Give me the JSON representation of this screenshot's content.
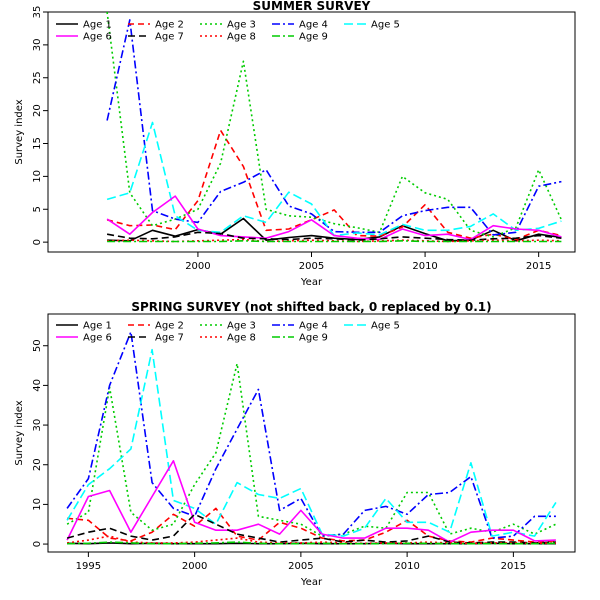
{
  "chart_data": [
    {
      "type": "line",
      "title": "SUMMER SURVEY",
      "xlabel": "Year",
      "ylabel": "Survey index",
      "xlim": [
        1993.4,
        2016.6
      ],
      "ylim": [
        -1.5,
        35
      ],
      "xticks": [
        2000,
        2005,
        2010,
        2015
      ],
      "yticks": [
        0,
        5,
        10,
        15,
        20,
        25,
        30,
        35
      ],
      "legend": "top-left",
      "x": [
        1994,
        1995,
        1996,
        1997,
        1998,
        1999,
        2000,
        2001,
        2002,
        2003,
        2004,
        2005,
        2006,
        2007,
        2008,
        2009,
        2010,
        2011,
        2012,
        2013,
        2014,
        2015,
        2016
      ],
      "series": [
        {
          "name": "Age 1",
          "color": "#000000",
          "dash": "solid",
          "values": [
            null,
            null,
            0.3,
            0.2,
            1.8,
            0.9,
            1.9,
            1.2,
            3.6,
            0.3,
            0.7,
            1.0,
            0.6,
            0.4,
            0.8,
            2.5,
            1.3,
            0.2,
            0.3,
            1.8,
            0.2,
            1.2,
            0.7
          ]
        },
        {
          "name": "Age 2",
          "color": "#ff0000",
          "dash": "6,4",
          "values": [
            null,
            null,
            3.4,
            2.5,
            2.6,
            1.9,
            6.3,
            17.0,
            11.5,
            1.8,
            2.0,
            3.4,
            4.9,
            1.0,
            0.9,
            2.3,
            5.7,
            1.5,
            0.6,
            1.2,
            0.4,
            1.8,
            1.0
          ]
        },
        {
          "name": "Age 3",
          "color": "#00cc00",
          "dash": "2,3",
          "values": [
            null,
            null,
            35.0,
            7.5,
            2.5,
            3.5,
            5.0,
            12.0,
            27.5,
            5.0,
            4.0,
            3.8,
            2.8,
            2.2,
            1.5,
            10.0,
            7.5,
            6.5,
            1.8,
            0.8,
            2.2,
            11.0,
            3.4
          ]
        },
        {
          "name": "Age 4",
          "color": "#0000ff",
          "dash": "8,3,2,3",
          "values": [
            null,
            null,
            18.5,
            33.8,
            4.8,
            3.5,
            3.0,
            7.7,
            9.1,
            11.0,
            5.5,
            4.3,
            1.6,
            1.5,
            1.5,
            4.0,
            4.8,
            5.3,
            5.3,
            1.1,
            1.5,
            8.5,
            9.2
          ]
        },
        {
          "name": "Age 5",
          "color": "#00ffff",
          "dash": "9,4",
          "values": [
            null,
            null,
            6.5,
            7.5,
            18.2,
            4.0,
            1.8,
            1.5,
            4.0,
            3.0,
            7.6,
            5.8,
            1.0,
            1.4,
            1.1,
            2.7,
            1.8,
            1.8,
            2.4,
            4.3,
            1.8,
            2.1,
            3.2
          ]
        },
        {
          "name": "Age 6",
          "color": "#ff00ff",
          "dash": "solid",
          "values": [
            null,
            null,
            3.5,
            1.2,
            4.5,
            7.0,
            2.0,
            1.0,
            0.8,
            0.6,
            1.6,
            3.4,
            1.0,
            0.6,
            0.4,
            2.0,
            1.0,
            1.2,
            0.4,
            2.5,
            2.0,
            1.8,
            0.8
          ]
        },
        {
          "name": "Age 7",
          "color": "#000000",
          "dash": "7,4",
          "values": [
            null,
            null,
            1.2,
            0.6,
            0.5,
            0.8,
            1.5,
            1.3,
            0.6,
            0.5,
            0.4,
            0.6,
            0.5,
            0.3,
            0.5,
            0.8,
            0.6,
            0.4,
            0.3,
            0.5,
            0.6,
            1.0,
            0.6
          ]
        },
        {
          "name": "Age 8",
          "color": "#ff0000",
          "dash": "2,3",
          "values": [
            null,
            null,
            0.2,
            0.3,
            0.2,
            0.1,
            0.2,
            0.3,
            0.4,
            0.1,
            0.2,
            0.3,
            0.2,
            0.1,
            0.2,
            0.3,
            0.2,
            0.1,
            0.2,
            0.3,
            0.2,
            0.3,
            0.2
          ]
        },
        {
          "name": "Age 9",
          "color": "#00cc00",
          "dash": "8,3,2,3",
          "values": [
            null,
            null,
            0.1,
            0.1,
            0.1,
            0.1,
            0.1,
            0.1,
            0.2,
            0.1,
            0.1,
            0.1,
            0.1,
            0.1,
            0.1,
            0.2,
            0.1,
            0.1,
            0.1,
            0.1,
            0.1,
            0.1,
            0.1
          ]
        }
      ]
    },
    {
      "type": "line",
      "title": "SPRING SURVEY (not shifted back, 0 replaced by 0.1)",
      "xlabel": "Year",
      "ylabel": "Survey index",
      "xlim": [
        1993.1,
        2017.9
      ],
      "ylim": [
        -2,
        58
      ],
      "xticks": [
        1995,
        2000,
        2005,
        2010,
        2015
      ],
      "yticks": [
        0,
        10,
        20,
        30,
        40,
        50
      ],
      "legend": "top-left",
      "x": [
        1994,
        1995,
        1996,
        1997,
        1998,
        1999,
        2000,
        2001,
        2002,
        2003,
        2004,
        2005,
        2006,
        2007,
        2008,
        2009,
        2010,
        2011,
        2012,
        2013,
        2014,
        2015,
        2016,
        2017
      ],
      "series": [
        {
          "name": "Age 1",
          "color": "#000000",
          "dash": "solid",
          "values": [
            0.2,
            0.1,
            0.3,
            0.1,
            0.2,
            0.1,
            0.1,
            0.1,
            0.2,
            0.1,
            0.1,
            0.2,
            0.1,
            0.1,
            0.1,
            0.2,
            0.1,
            0.1,
            0.1,
            0.1,
            0.2,
            0.1,
            0.1,
            0.1
          ]
        },
        {
          "name": "Age 2",
          "color": "#ff0000",
          "dash": "6,4",
          "values": [
            6.5,
            6.0,
            1.5,
            0.8,
            3.0,
            7.5,
            4.5,
            9.0,
            2.0,
            1.0,
            5.5,
            4.0,
            1.5,
            0.8,
            1.0,
            3.0,
            6.0,
            2.0,
            0.8,
            0.5,
            1.5,
            1.0,
            0.5,
            0.8
          ]
        },
        {
          "name": "Age 3",
          "color": "#00cc00",
          "dash": "2,3",
          "values": [
            5.0,
            8.0,
            39.5,
            8.0,
            3.5,
            5.0,
            15.0,
            23.0,
            45.5,
            7.0,
            6.0,
            5.0,
            2.0,
            2.5,
            4.5,
            4.0,
            13.0,
            13.0,
            2.5,
            4.0,
            3.0,
            5.0,
            2.5,
            5.0
          ]
        },
        {
          "name": "Age 4",
          "color": "#0000ff",
          "dash": "8,3,2,3",
          "values": [
            9.0,
            16.5,
            40.0,
            53.5,
            15.5,
            9.0,
            7.0,
            19.0,
            29.0,
            39.0,
            8.5,
            11.5,
            2.0,
            2.5,
            8.5,
            9.5,
            7.5,
            12.5,
            13.0,
            17.0,
            1.5,
            2.0,
            7.0,
            7.0
          ]
        },
        {
          "name": "Age 5",
          "color": "#00ffff",
          "dash": "9,4",
          "values": [
            6.0,
            15.0,
            19.0,
            24.0,
            49.0,
            11.0,
            9.0,
            5.0,
            15.5,
            12.5,
            11.5,
            14.0,
            2.5,
            2.0,
            4.0,
            11.5,
            5.5,
            5.5,
            3.0,
            20.5,
            2.0,
            3.0,
            2.0,
            10.5
          ]
        },
        {
          "name": "Age 6",
          "color": "#ff00ff",
          "dash": "solid",
          "values": [
            1.0,
            12.0,
            13.5,
            3.0,
            12.0,
            21.0,
            5.5,
            3.5,
            3.5,
            5.0,
            2.5,
            8.5,
            2.5,
            1.5,
            1.5,
            4.0,
            4.0,
            3.5,
            0.5,
            3.0,
            3.5,
            3.5,
            0.8,
            1.0
          ]
        },
        {
          "name": "Age 7",
          "color": "#000000",
          "dash": "7,4",
          "values": [
            1.5,
            3.0,
            4.0,
            2.0,
            1.0,
            2.0,
            7.5,
            5.0,
            2.5,
            1.5,
            0.5,
            1.0,
            1.5,
            0.5,
            1.0,
            0.5,
            0.8,
            2.0,
            0.5,
            0.3,
            0.5,
            0.5,
            0.3,
            0.5
          ]
        },
        {
          "name": "Age 8",
          "color": "#ff0000",
          "dash": "2,3",
          "values": [
            0.3,
            1.0,
            2.0,
            0.5,
            0.3,
            0.3,
            0.5,
            1.0,
            1.5,
            0.5,
            0.3,
            0.3,
            0.5,
            0.3,
            0.2,
            0.3,
            0.3,
            0.5,
            0.3,
            0.2,
            0.3,
            0.3,
            0.2,
            0.3
          ]
        },
        {
          "name": "Age 9",
          "color": "#00cc00",
          "dash": "8,3,2,3",
          "values": [
            0.1,
            0.2,
            0.5,
            0.3,
            0.1,
            0.1,
            0.2,
            0.3,
            0.5,
            0.2,
            0.1,
            0.1,
            0.2,
            0.1,
            0.1,
            0.1,
            0.2,
            0.2,
            0.1,
            0.1,
            0.1,
            0.1,
            0.1,
            0.2
          ]
        }
      ]
    }
  ]
}
